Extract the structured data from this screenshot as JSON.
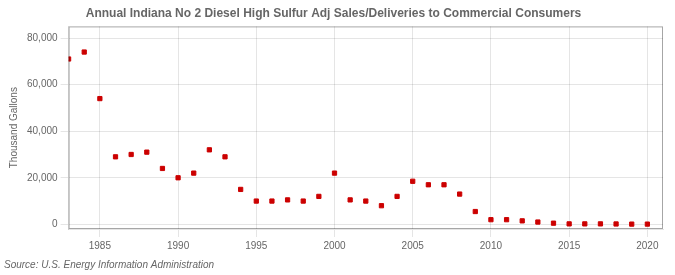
{
  "chart_data": {
    "type": "scatter",
    "title": "Annual Indiana No 2 Diesel High Sulfur Adj Sales/Deliveries to Commercial Consumers",
    "ylabel": "Thousand Gallons",
    "annotations": [
      "Source: U.S. Energy Information Administration"
    ],
    "x": [
      1983,
      1984,
      1985,
      1986,
      1987,
      1988,
      1989,
      1990,
      1991,
      1992,
      1993,
      1994,
      1995,
      1996,
      1997,
      1998,
      1999,
      2000,
      2001,
      2002,
      2003,
      2004,
      2005,
      2006,
      2007,
      2008,
      2009,
      2010,
      2011,
      2012,
      2013,
      2014,
      2015,
      2016,
      2017,
      2018,
      2019,
      2020
    ],
    "values": [
      71000,
      74000,
      54000,
      29000,
      30000,
      31000,
      24000,
      20000,
      22000,
      32000,
      29000,
      15000,
      10000,
      10000,
      10500,
      10000,
      12000,
      22000,
      10500,
      10000,
      8000,
      12000,
      18500,
      17000,
      17000,
      13000,
      5500,
      2000,
      2000,
      1500,
      1000,
      500,
      200,
      200,
      200,
      150,
      100,
      100
    ],
    "color": "#cc0000",
    "marker": "square",
    "xlim": [
      1983,
      2021
    ],
    "xticks": [
      1985,
      1990,
      1995,
      2000,
      2005,
      2010,
      2015,
      2020
    ],
    "ylim": [
      -2000,
      85000
    ],
    "yticks": [
      0,
      {
        "value": 20000,
        "label": "20,000"
      },
      {
        "value": 40000,
        "label": "40,000"
      },
      {
        "value": 60000,
        "label": "60,000"
      },
      {
        "value": 80000,
        "label": "80,000"
      }
    ],
    "grid": true
  }
}
